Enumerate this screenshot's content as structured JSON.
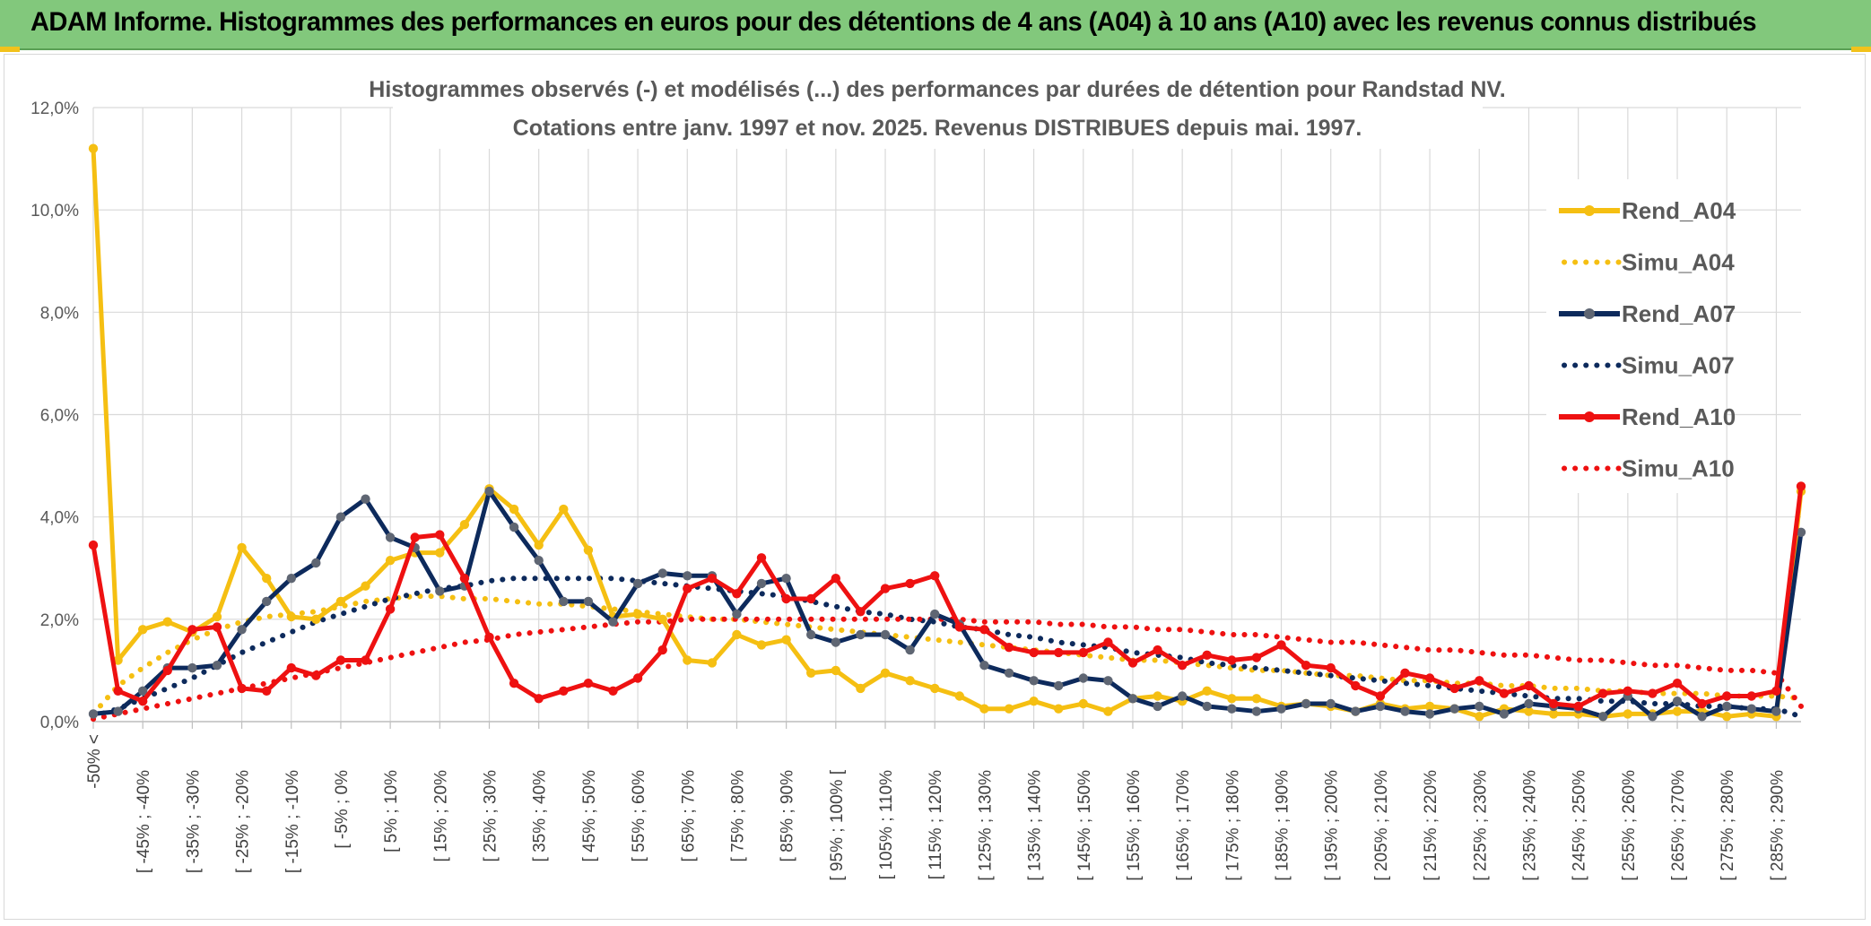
{
  "banner": {
    "title": "ADAM Informe. Histogrammes des performances en euros pour des détentions de 4 ans (A04) à 10 ans (A10) avec les revenus connus distribués"
  },
  "chart_data": {
    "type": "line",
    "title_lines": [
      "Histogrammes observés (-) et modélisés (...) des performances par durées de détention pour Randstad NV.",
      "Cotations entre janv. 1997 et nov. 2025. Revenus DISTRIBUES depuis mai. 1997."
    ],
    "ylim": [
      0,
      12
    ],
    "y_ticks": [
      0,
      2,
      4,
      6,
      8,
      10,
      12
    ],
    "y_tick_labels": [
      "0,0%",
      "2,0%",
      "4,0%",
      "6,0%",
      "8,0%",
      "10,0%",
      "12,0%"
    ],
    "grid": true,
    "legend_position": "right",
    "x_tick_labels": [
      "-50% <",
      "[ -45% ; -40%",
      "[ -35% ; -30%",
      "[ -25% ; -20%",
      "[ -15% ; -10%",
      "[ -5% ; 0%",
      "[ 5% ; 10%",
      "[ 15% ; 20%",
      "[ 25% ; 30%",
      "[ 35% ; 40%",
      "[ 45% ; 50%",
      "[ 55% ; 60%",
      "[ 65% ; 70%",
      "[ 75% ; 80%",
      "[ 85% ; 90%",
      "[ 95% ; 100% [",
      "[ 105% ; 110%",
      "[ 115% ; 120%",
      "[ 125% ; 130%",
      "[ 135% ; 140%",
      "[ 145% ; 150%",
      "[ 155% ; 160%",
      "[ 165% ; 170%",
      "[ 175% ; 180%",
      "[ 185% ; 190%",
      "[ 195% ; 200%",
      "[ 205% ; 210%",
      "[ 215% ; 220%",
      "[ 225% ; 230%",
      "[ 235% ; 240%",
      "[ 245% ; 250%",
      "[ 255% ; 260%",
      "[ 265% ; 270%",
      "[ 275% ; 280%",
      "[ 285% ; 290%"
    ],
    "x_tick_every": 2,
    "n_points": 70,
    "series": [
      {
        "name": "Rend_A04",
        "color": "#f5bf12",
        "style": "solid",
        "values": [
          11.2,
          1.2,
          1.8,
          1.95,
          1.75,
          2.05,
          3.4,
          2.8,
          2.05,
          2.0,
          2.35,
          2.65,
          3.15,
          3.3,
          3.3,
          3.85,
          4.55,
          4.15,
          3.45,
          4.15,
          3.35,
          2.05,
          2.1,
          2.0,
          1.2,
          1.15,
          1.7,
          1.5,
          1.6,
          0.95,
          1.0,
          0.65,
          0.95,
          0.8,
          0.65,
          0.5,
          0.25,
          0.25,
          0.4,
          0.25,
          0.35,
          0.2,
          0.45,
          0.5,
          0.4,
          0.6,
          0.45,
          0.45,
          0.3,
          0.35,
          0.3,
          0.2,
          0.35,
          0.25,
          0.3,
          0.25,
          0.1,
          0.25,
          0.2,
          0.15,
          0.15,
          0.1,
          0.15,
          0.15,
          0.2,
          0.2,
          0.1,
          0.15,
          0.1,
          4.5
        ]
      },
      {
        "name": "Simu_A04",
        "color": "#f5bf12",
        "style": "dotted",
        "values": [
          0.15,
          0.7,
          1.05,
          1.35,
          1.6,
          1.8,
          1.95,
          2.05,
          2.1,
          2.15,
          2.25,
          2.35,
          2.4,
          2.45,
          2.45,
          2.4,
          2.4,
          2.35,
          2.3,
          2.3,
          2.25,
          2.2,
          2.15,
          2.1,
          2.05,
          2.0,
          2.0,
          1.95,
          1.9,
          1.85,
          1.8,
          1.75,
          1.7,
          1.65,
          1.6,
          1.55,
          1.5,
          1.45,
          1.4,
          1.35,
          1.3,
          1.25,
          1.2,
          1.2,
          1.15,
          1.1,
          1.05,
          1.0,
          1.0,
          0.95,
          0.9,
          0.9,
          0.85,
          0.8,
          0.8,
          0.75,
          0.75,
          0.7,
          0.7,
          0.65,
          0.65,
          0.6,
          0.6,
          0.55,
          0.55,
          0.55,
          0.5,
          0.5,
          0.5,
          0.45
        ]
      },
      {
        "name": "Rend_A07",
        "color": "#0d2a5c",
        "style": "solid",
        "values": [
          0.15,
          0.2,
          0.6,
          1.05,
          1.05,
          1.1,
          1.8,
          2.35,
          2.8,
          3.1,
          4.0,
          4.35,
          3.6,
          3.4,
          2.55,
          2.65,
          4.5,
          3.8,
          3.15,
          2.35,
          2.35,
          1.95,
          2.7,
          2.9,
          2.85,
          2.85,
          2.1,
          2.7,
          2.8,
          1.7,
          1.55,
          1.7,
          1.7,
          1.4,
          2.1,
          1.9,
          1.1,
          0.95,
          0.8,
          0.7,
          0.85,
          0.8,
          0.45,
          0.3,
          0.5,
          0.3,
          0.25,
          0.2,
          0.25,
          0.35,
          0.35,
          0.2,
          0.3,
          0.2,
          0.15,
          0.25,
          0.3,
          0.15,
          0.35,
          0.3,
          0.25,
          0.1,
          0.5,
          0.1,
          0.4,
          0.1,
          0.3,
          0.25,
          0.2,
          3.7
        ]
      },
      {
        "name": "Simu_A07",
        "color": "#0d2a5c",
        "style": "dotted",
        "values": [
          0.1,
          0.25,
          0.45,
          0.65,
          0.85,
          1.1,
          1.35,
          1.55,
          1.75,
          1.95,
          2.1,
          2.25,
          2.4,
          2.5,
          2.6,
          2.65,
          2.75,
          2.8,
          2.8,
          2.8,
          2.8,
          2.8,
          2.75,
          2.7,
          2.65,
          2.6,
          2.55,
          2.5,
          2.45,
          2.35,
          2.25,
          2.15,
          2.1,
          2.0,
          1.95,
          1.85,
          1.8,
          1.7,
          1.65,
          1.55,
          1.5,
          1.45,
          1.35,
          1.3,
          1.25,
          1.15,
          1.1,
          1.05,
          1.0,
          0.95,
          0.9,
          0.85,
          0.8,
          0.75,
          0.7,
          0.65,
          0.6,
          0.55,
          0.5,
          0.45,
          0.45,
          0.4,
          0.4,
          0.35,
          0.35,
          0.3,
          0.3,
          0.25,
          0.25,
          0.1
        ]
      },
      {
        "name": "Rend_A10",
        "color": "#ee1111",
        "style": "solid",
        "values": [
          3.45,
          0.6,
          0.4,
          1.0,
          1.8,
          1.85,
          0.65,
          0.6,
          1.05,
          0.9,
          1.2,
          1.2,
          2.2,
          3.6,
          3.65,
          2.8,
          1.65,
          0.75,
          0.45,
          0.6,
          0.75,
          0.6,
          0.85,
          1.4,
          2.6,
          2.8,
          2.5,
          3.2,
          2.4,
          2.4,
          2.8,
          2.15,
          2.6,
          2.7,
          2.85,
          1.85,
          1.8,
          1.45,
          1.35,
          1.35,
          1.35,
          1.55,
          1.15,
          1.4,
          1.1,
          1.3,
          1.2,
          1.25,
          1.5,
          1.1,
          1.05,
          0.7,
          0.5,
          0.95,
          0.85,
          0.65,
          0.8,
          0.55,
          0.7,
          0.35,
          0.3,
          0.55,
          0.6,
          0.55,
          0.75,
          0.35,
          0.5,
          0.5,
          0.6,
          4.6
        ]
      },
      {
        "name": "Simu_A10",
        "color": "#ee1111",
        "style": "dotted",
        "values": [
          0.05,
          0.15,
          0.25,
          0.35,
          0.45,
          0.55,
          0.65,
          0.75,
          0.85,
          0.95,
          1.05,
          1.15,
          1.25,
          1.35,
          1.45,
          1.55,
          1.6,
          1.7,
          1.75,
          1.8,
          1.85,
          1.9,
          1.95,
          1.95,
          2.0,
          2.0,
          2.0,
          2.0,
          2.0,
          2.0,
          2.0,
          2.0,
          2.0,
          2.0,
          2.0,
          2.0,
          1.95,
          1.95,
          1.95,
          1.9,
          1.9,
          1.85,
          1.85,
          1.8,
          1.8,
          1.75,
          1.7,
          1.7,
          1.65,
          1.6,
          1.55,
          1.55,
          1.5,
          1.45,
          1.4,
          1.4,
          1.35,
          1.3,
          1.3,
          1.25,
          1.2,
          1.2,
          1.15,
          1.1,
          1.1,
          1.05,
          1.0,
          1.0,
          0.95,
          0.3
        ]
      }
    ]
  }
}
